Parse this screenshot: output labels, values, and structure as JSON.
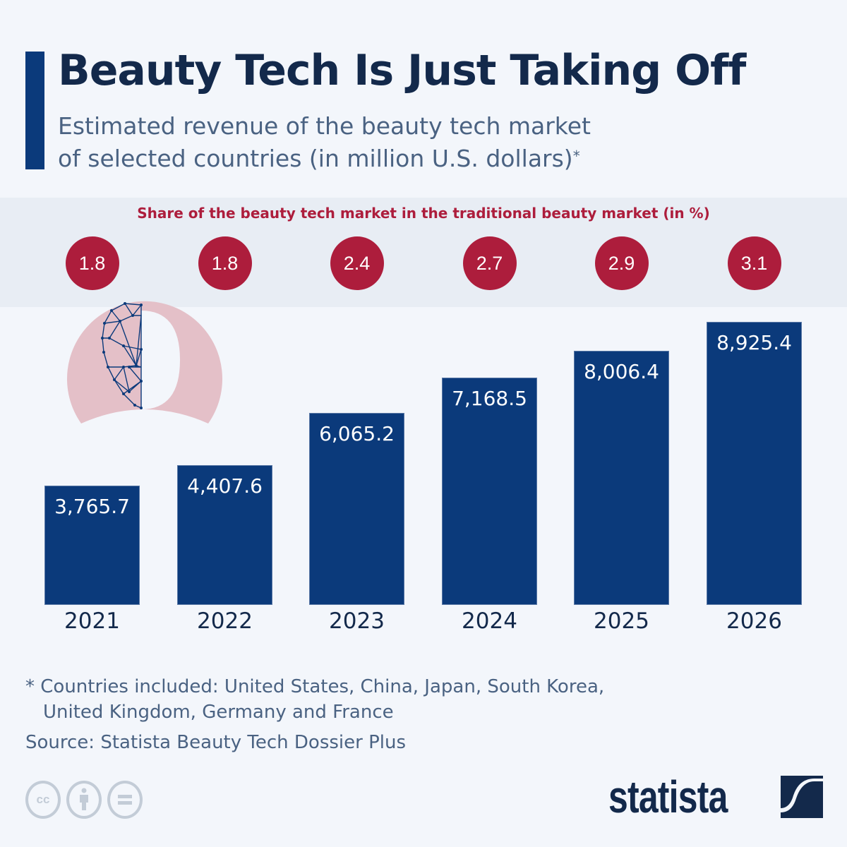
{
  "header": {
    "title": "Beauty Tech Is Just Taking Off",
    "subtitle_line1": "Estimated revenue of the beauty tech market",
    "subtitle_line2": "of selected countries (in million U.S. dollars)",
    "subtitle_marker": "*"
  },
  "share_panel": {
    "label": "Share of the beauty tech market in the traditional beauty market (in %)"
  },
  "colors": {
    "bar": "#0b3a7b",
    "share_circle": "#ad1d3c",
    "title": "#13294b",
    "subtitle": "#4a6282",
    "background": "#f3f6fb",
    "band": "#e8edf4",
    "decor_ring": "#e4c0c8"
  },
  "chart_data": {
    "type": "bar",
    "title": "Beauty Tech Is Just Taking Off",
    "subtitle": "Estimated revenue of the beauty tech market of selected countries (in million U.S. dollars)*",
    "categories": [
      "2021",
      "2022",
      "2023",
      "2024",
      "2025",
      "2026"
    ],
    "series": [
      {
        "name": "Revenue (million U.S. dollars)",
        "values": [
          3765.7,
          4407.6,
          6065.2,
          7168.5,
          8006.4,
          8925.4
        ],
        "labels": [
          "3,765.7",
          "4,407.6",
          "6,065.2",
          "7,168.5",
          "8,006.4",
          "8,925.4"
        ]
      },
      {
        "name": "Share of the beauty tech market in the traditional beauty market (in %)",
        "values": [
          1.8,
          1.8,
          2.4,
          2.7,
          2.9,
          3.1
        ],
        "labels": [
          "1.8",
          "1.8",
          "2.4",
          "2.7",
          "2.9",
          "3.1"
        ]
      }
    ],
    "xlabel": "",
    "ylabel": "",
    "ylim": [
      0,
      8925.4
    ],
    "grid": false,
    "legend": "none"
  },
  "footer": {
    "note_line1": "* Countries included: United States, China, Japan, South Korea,",
    "note_line2": "United Kingdom, Germany and France",
    "source": "Source: Statista Beauty Tech Dossier Plus",
    "license_icons": [
      "creative-commons-icon",
      "attribution-icon",
      "no-derivatives-icon"
    ],
    "cc_label": "cc",
    "logo_text": "statista"
  }
}
